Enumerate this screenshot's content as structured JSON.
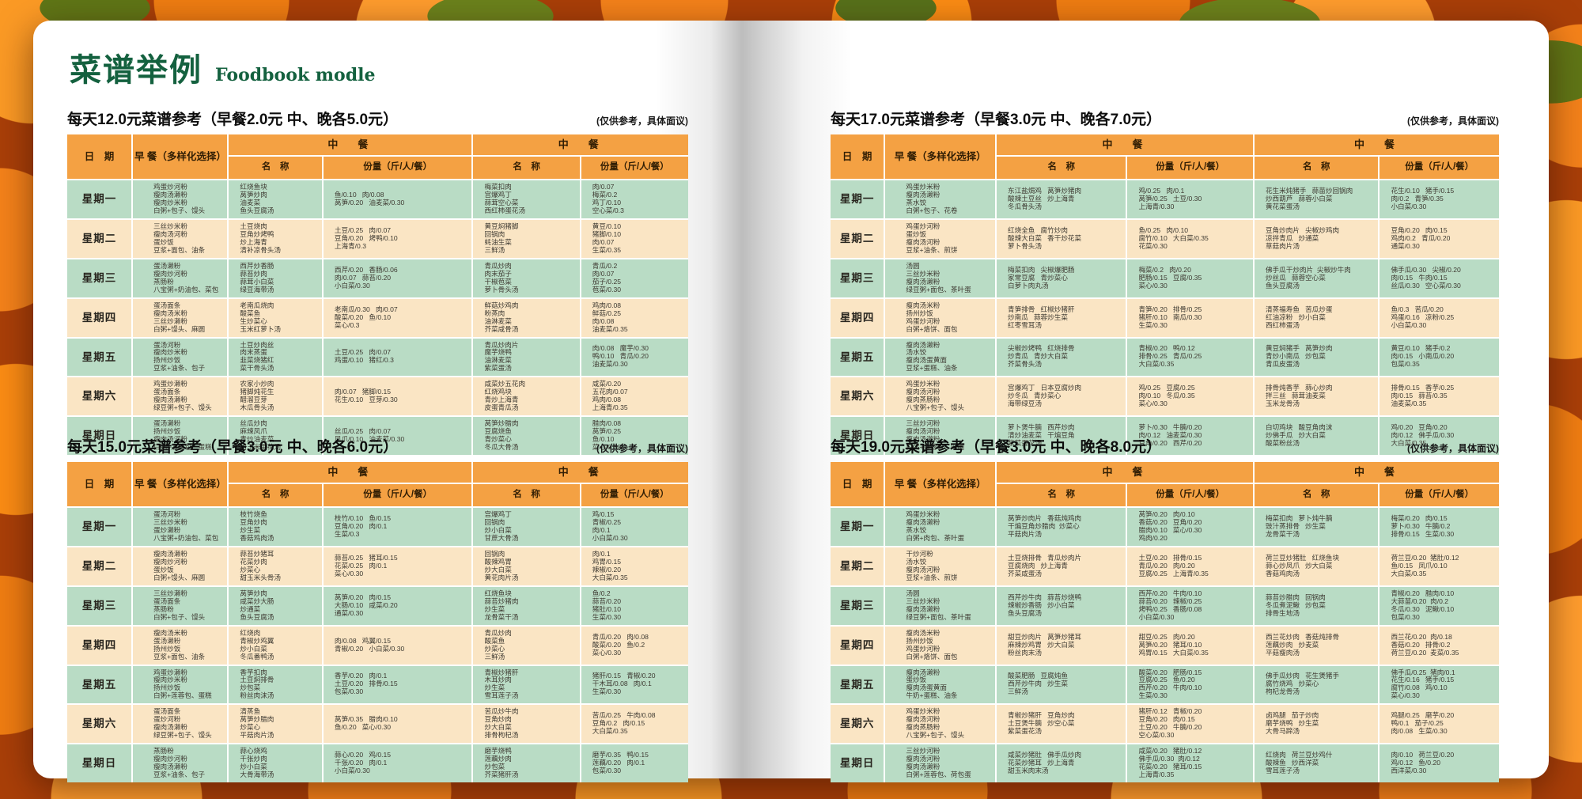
{
  "page_title": {
    "zh": "菜谱举例",
    "en": "Foodbook modle"
  },
  "note": "(仅供参考，具体面议)",
  "hdr": {
    "date": "日　期",
    "bf": "早 餐（多样化选择）",
    "meal": "中　餐",
    "name": "名　称",
    "qty": "份量（斤/人/餐）"
  },
  "tables": [
    {
      "title": "每天12.0元菜谱参考（早餐2.0元 中、晚各5.0元）",
      "rows": [
        {
          "day": "星期一",
          "bf": "鸡蛋炒河粉\n瘦肉汤濑粉\n瘦肉炒米粉\n白粥+包子、馒头",
          "ln": "红烧鱼块\n莴笋炒肉\n油麦菜\n鱼头豆腐汤",
          "lq": "鱼/0.10   肉/0.08\n莴笋/0.20   油麦菜/0.30",
          "dn": "梅菜扣肉\n宫爆鸡丁\n蒜茸空心菜\n西红柿蛋花汤",
          "dq": "肉/0.07\n梅菜/0.2\n鸡丁/0.10\n空心菜/0.3"
        },
        {
          "day": "星期二",
          "bf": "三丝炒米粉\n瘦肉汤河粉\n蛋炒饭\n豆浆+面包、油条",
          "ln": "土豆烧肉\n豆角炒烤鸭\n炒上海青\n清补凉骨头汤",
          "lq": "土豆/0.25   肉/0.07\n豆角/0.20   烤鸭/0.10\n上海青/0.3",
          "dn": "黄豆焖猪脚\n回锅肉\n蚝油生菜\n三鲜汤",
          "dq": "黄豆/0.10\n猪脚/0.10\n肉/0.07\n生菜/0.35"
        },
        {
          "day": "星期三",
          "bf": "蛋汤濑粉\n瘦肉炒河粉\n蒸肠粉\n八宝粥+奶油包、菜包",
          "ln": "西芹炒香肠\n蒜苔炒肉\n蒜茸小白菜\n绿豆海带汤",
          "lq": "西芹/0.20   香肠/0.06\n肉/0.07   蒜苔/0.20\n小白菜/0.30",
          "dn": "青瓜炒肉\n肉末茄子\n干椒苞菜\n萝卜骨头汤",
          "dq": "青瓜/0.2\n肉/0.07\n茄子/0.25\n苞菜/0.30"
        },
        {
          "day": "星期四",
          "bf": "蛋汤面条\n瘦肉汤米粉\n三丝炒濑粉\n白粥+馒头、麻圆",
          "ln": "老南瓜烧肉\n酸菜鱼\n生炒菜心\n玉米红萝卜汤",
          "lq": "老南瓜/0.30   肉/0.07\n酸菜/0.20   鱼/0.10\n菜心/0.3",
          "dn": "鲜菇炒鸡肉\n粉蒸肉\n油淋麦菜\n芥菜咸骨汤",
          "dq": "鸡肉/0.08\n鲜菇/0.25\n肉/0.08\n油麦菜/0.35"
        },
        {
          "day": "星期五",
          "bf": "蛋汤河粉\n瘦肉炒米粉\n扬州炒饭\n豆浆+油条、包子",
          "ln": "土豆炒肉丝\n肉末蒸蛋\n韭菜烧猪红\n菜干骨头汤",
          "lq": "土豆/0.25   肉/0.07\n鸡蛋/0.10   猪红/0.3",
          "dn": "青瓜炒肉片\n魔芋烧鸭\n油淋麦菜\n紫菜蛋汤",
          "dq": "肉/0.08   魔芋/0.30\n鸭/0.10   青瓜/0.20\n油麦菜/0.30"
        },
        {
          "day": "星期六",
          "bf": "鸡蛋炒濑粉\n蛋汤面条\n瘦肉汤濑粉\n绿豆粥+包子、馒头",
          "ln": "农家小炒肉\n猪脚炖花生\n醋溜豆芽\n木瓜骨头汤",
          "lq": "肉/0.07   猪脚/0.15\n花生/0.10   豆芽/0.30",
          "dn": "咸菜炒五花肉\n红烧鸡块\n青炒上海青\n皮蛋青瓜汤",
          "dq": "咸菜/0.20\n五花肉/0.07\n鸡肉/0.08\n上海青/0.35"
        },
        {
          "day": "星期日",
          "bf": "蛋汤濑粉\n扬州炒饭\n瘦肉汤河粉\n白粥+莲蓉包、蛋糕",
          "ln": "丝瓜炒肉\n麻辣凤爪\n青炒油麦菜\n甜玉米蛋花汤",
          "lq": "丝瓜/0.25   肉/0.07\n凤爪/0.10   油麦菜/0.30",
          "dn": "莴笋炒腊肉\n豆腐烧鱼\n青炒菜心\n冬瓜大骨汤",
          "dq": "腊肉/0.08\n莴笋/0.25\n鱼/0.10\n菜心/0.30"
        }
      ]
    },
    {
      "title": "每天15.0元菜谱参考（早餐3.0元 中、晚各6.0元）",
      "rows": [
        {
          "day": "星期一",
          "bf": "蛋汤河粉\n三丝炒米粉\n蛋炒濑粉\n八宝粥+奶油包、菜包",
          "ln": "枝竹烧鱼\n豆角炒肉\n炒生菜\n香菇鸡肉汤",
          "lq": "枝竹/0.10   鱼/0.15\n豆角/0.20   肉/0.1\n生菜/0.3",
          "dn": "宫爆鸡丁\n回锅肉\n炒小白菜\n甘蔗大骨汤",
          "dq": "鸡/0.15\n青椒/0.25\n肉/0.1\n小白菜/0.30"
        },
        {
          "day": "星期二",
          "bf": "瘦肉汤濑粉\n瘦肉炒河粉\n蛋炒饭\n白粥+馒头、麻圆",
          "ln": "蒜苔炒猪耳\n花菜炒肉\n炒菜心\n甜玉米头骨汤",
          "lq": "蒜苔/0.25   猪耳/0.15\n花菜/0.25   肉/0.1\n菜心/0.30",
          "dn": "回锅肉\n酸辣鸡胃\n炒大白菜\n黄花肉片汤",
          "dq": "肉/0.1\n鸡胃/0.15\n辣椒/0.20\n大白菜/0.35"
        },
        {
          "day": "星期三",
          "bf": "三丝炒濑粉\n蛋汤面条\n蒸肠粉\n白粥+包子、馒头",
          "ln": "莴笋炒肉\n咸菜炒大肠\n炒通菜\n鱼头豆腐汤",
          "lq": "莴笋/0.20   肉/0.15\n大肠/0.10   咸菜/0.20\n通菜/0.30",
          "dn": "红烧鱼块\n蒜苔炒猪肉\n炒生菜\n龙骨菜干汤",
          "dq": "鱼/0.2\n蒜苔/0.20\n猪肚/0.10\n生菜/0.30"
        },
        {
          "day": "星期四",
          "bf": "瘦肉汤米粉\n蛋汤濑粉\n扬州炒饭\n豆浆+面包、油条",
          "ln": "红烧肉\n青椒炒鸡翼\n炒小白菜\n冬瓜番鸭汤",
          "lq": "肉/0.08   鸡翼/0.15\n青椒/0.20   小白菜/0.30",
          "dn": "青瓜炒肉\n酸菜鱼\n炒菜心\n三鲜汤",
          "dq": "青瓜/0.20   肉/0.08\n酸菜/0.20   鱼/0.2\n菜心/0.30"
        },
        {
          "day": "星期五",
          "bf": "鸡蛋炒濑粉\n瘦肉炒米粉\n扬州炒饭\n白粥+莲蓉包、蛋糕",
          "ln": "香芋扣肉\n土豆焖排骨\n炒包菜\n粉丝肉沫汤",
          "lq": "香芋/0.20   肉/0.1\n土豆/0.20   排骨/0.15\n包菜/0.30",
          "dn": "青椒炒猪肝\n木耳炒肉\n炒生菜\n雪耳莲子汤",
          "dq": "猪肝/0.15   青椒/0.20\n干木耳/0.08   肉/0.1\n生菜/0.30"
        },
        {
          "day": "星期六",
          "bf": "蛋汤面条\n蛋炒河粉\n瘦肉汤濑粉\n绿豆粥+包子、馒头",
          "ln": "清蒸鱼\n莴笋炒腊肉\n炒菜心\n平菇肉片汤",
          "lq": "莴笋/0.35   腊肉/0.10\n鱼/0.20   菜心/0.30",
          "dn": "苦瓜炒牛肉\n豆角炒肉\n炒大白菜\n排骨枸杞汤",
          "dq": "苦瓜/0.25   牛肉/0.08\n豆角/0.2   肉/0.15\n大白菜/0.35"
        },
        {
          "day": "星期日",
          "bf": "蒸肠粉\n瘦肉炒河粉\n瘦肉汤濑粉\n豆浆+油条、包子",
          "ln": "蒜心烧鸡\n千张炒肉\n炒小白菜\n大骨海带汤",
          "lq": "蒜心/0.20   鸡/0.15\n千张/0.20   肉/0.1\n小白菜/0.30",
          "dn": "磨芋烧鸭\n莲藕炒肉\n炒包菜\n芥菜猪肝汤",
          "dq": "磨芋/0.35   鸭/0.15\n莲藕/0.20   肉/0.1\n包菜/0.30"
        }
      ]
    },
    {
      "title": "每天17.0元菜谱参考（早餐3.0元 中、晚各7.0元）",
      "rows": [
        {
          "day": "星期一",
          "bf": "鸡蛋炒米粉\n瘦肉汤濑粉\n蒸水饺\n白粥+包子、花卷",
          "ln": "东江盐焗鸡   莴笋炒猪肉\n酸辣土豆丝   炒上海青\n冬瓜骨头汤",
          "lq": "鸡/0.25   肉/0.1\n莴笋/0.25   土豆/0.30\n上海青/0.30",
          "dn": "花生米炖猪手   蒜苗炒回锅肉\n炒西葫芦   蒜蓉小白菜\n黄花菜蛋汤",
          "dq": "花生/0.10   猪手/0.15\n肉/0.2   青笋/0.35\n小白菜/0.30"
        },
        {
          "day": "星期二",
          "bf": "鸡蛋炒河粉\n蛋炒饭\n瘦肉汤河粉\n豆浆+油条、煎饼",
          "ln": "红烧全鱼   腐竹炒肉\n酸辣大白菜   香干炒花菜\n萝卜骨头汤",
          "lq": "鱼/0.25   肉/0.10\n腐竹/0.10   大白菜/0.35\n花菜/0.30",
          "dn": "豆角炒肉片   尖椒炒鸡肉\n凉拌青瓜   炒通菜\n草菇肉片汤",
          "dq": "豆角/0.20   肉/0.15\n鸡肉/0.2   青瓜/0.20\n通菜/0.30"
        },
        {
          "day": "星期三",
          "bf": "汤圆\n三丝炒米粉\n瘦肉汤濑粉\n绿豆粥+面包、茶叶蛋",
          "ln": "梅菜扣肉   尖椒爆肥肠\n家常豆腐   青炒菜心\n白萝卜肉丸汤",
          "lq": "梅菜/0.2   肉/0.20\n肥肠/0.15   豆腐/0.35\n菜心/0.30",
          "dn": "佛手瓜干炒肉片  尖椒炒牛肉\n炒丝瓜   蒜蓉空心菜\n鱼头豆腐汤",
          "dq": "佛手瓜/0.30   尖椒/0.20\n肉/0.15   牛肉/0.15\n丝瓜/0.30   空心菜/0.30"
        },
        {
          "day": "星期四",
          "bf": "瘦肉汤米粉\n扬州炒饭\n鸡蛋炒河粉\n白粥+烙饼、面包",
          "ln": "青笋排骨   红椒炒猪肝\n炒南瓜   蒜蓉炒生菜\n红枣雪耳汤",
          "lq": "青笋/0.20   排骨/0.25\n猪肝/0.10   南瓜/0.30\n生菜/0.30",
          "dn": "清蒸福寿鱼   苦瓜炒蛋\n红油凉粉   炒小白菜\n西红柿蛋汤",
          "dq": "鱼/0.3   苦瓜/0.20\n鸡蛋/0.16   凉粉/0.25\n小白菜/0.30"
        },
        {
          "day": "星期五",
          "bf": "瘦肉汤濑粉\n汤水饺\n瘦肉汤蛋黄面\n豆浆+蛋糕、油条",
          "ln": "尖椒炒烤鸭   红烧排骨\n炒青瓜   青炒大白菜\n芥菜骨头汤",
          "lq": "青椒/0.20   鸭/0.12\n排骨/0.25   青瓜/0.25\n大白菜/0.35",
          "dn": "黄豆焖猪手   莴笋炒肉\n青炒小南瓜   炒包菜\n青瓜皮蛋汤",
          "dq": "黄豆/0.10   猪手/0.2\n肉/0.15   小南瓜/0.20\n包菜/0.35"
        },
        {
          "day": "星期六",
          "bf": "鸡蛋炒米粉\n瘦肉汤河粉\n瘦肉蒸肠粉\n八宝粥+包子、馒头",
          "ln": "宫爆鸡丁   日本豆腐炒肉\n炒冬瓜   青炒菜心\n海带绿豆汤",
          "lq": "鸡/0.25   豆腐/0.25\n肉/0.10   冬瓜/0.35\n菜心/0.30",
          "dn": "排骨炖香芋   蒜心炒肉\n拌三丝   蒜茸油麦菜\n玉米龙骨汤",
          "dq": "排骨/0.15   香芋/0.25\n肉/0.15   蒜苔/0.35\n油麦菜/0.35"
        },
        {
          "day": "星期日",
          "bf": "三丝炒河粉\n瘦肉汤河粉\n瘦肉汤濑粉\n白粥+莲蓉包、麻圆",
          "ln": "萝卜煲牛腩   西芹炒肉\n清炒油麦菜   干煸豆角\n紫菜蛋花汤",
          "lq": "萝卜/0.30   牛腩/0.20\n肉/0.12   油麦菜/0.30\n豆角/0.20   西芹/0.20",
          "dn": "白切鸡块   酸豆角肉沫\n炒佛手瓜   炒大白菜\n酸菜粉丝汤",
          "dq": "鸡/0.20   豆角/0.20\n肉/0.12   佛手瓜/0.30\n大白菜/0.35"
        }
      ]
    },
    {
      "title": "每天19.0元菜谱参考（早餐3.0元 中、晚各8.0元）",
      "rows": [
        {
          "day": "星期一",
          "bf": "鸡蛋炒米粉\n瘦肉汤濑粉\n蒸水饺\n白粥+肉包、茶叶蛋",
          "ln": "莴笋炒肉片   香菇炖鸡肉\n干煸豆角炒腊肉  炒菜心\n平菇肉片汤",
          "lq": "莴笋/0.20   肉/0.10\n香菇/0.20   豆角/0.20\n腊肉/0.10   菜心/0.30\n鸡肉/0.20",
          "dn": "梅菜扣肉   萝卜炖牛腩\n豉汁蒸排骨   炒生菜\n龙骨菜干汤",
          "dq": "梅菜/0.20   肉/0.15\n萝卜/0.30   牛腩/0.2\n排骨/0.15   生菜/0.30"
        },
        {
          "day": "星期二",
          "bf": "干炒河粉\n汤水饺\n瘦肉汤河粉\n豆浆+油条、煎饼",
          "ln": "土豆烧排骨   青瓜炒肉片\n豆腐烧肉   炒上海青\n芥菜咸蛋汤",
          "lq": "土豆/0.20   排骨/0.15\n青瓜/0.20   肉/0.20\n豆腐/0.25   上海青/0.35",
          "dn": "荷兰豆炒猪肚   红烧鱼块\n蒜心炒凤爪   炒大白菜\n香菇鸡肉汤",
          "dq": "荷兰豆/0.20  猪肚/0.12\n鱼/0.15   凤爪/0.10\n大白菜/0.35"
        },
        {
          "day": "星期三",
          "bf": "汤圆\n三丝炒米粉\n瘦肉汤濑粉\n绿豆粥+面包、茶叶蛋",
          "ln": "西芹炒牛肉   蒜苔炒烧鸭\n辣椒炒香肠   炒小白菜\n鱼头豆腐汤",
          "lq": "西芹/0.20   牛肉/0.10\n蒜苔/0.20   辣椒/0.25\n烤鸭/0.25   香肠/0.08\n小白菜/0.30",
          "dn": "蒜苔炒腊肉   回锅肉\n冬瓜煮泥鳅   炒包菜\n排骨生地汤",
          "dq": "青椒/0.20   腊肉/0.10\n大蒜苗/0.20  肉/0.2\n冬瓜/0.30   泥鳅/0.10\n包菜/0.30"
        },
        {
          "day": "星期四",
          "bf": "瘦肉汤米粉\n扬州炒饭\n鸡蛋炒河粉\n白粥+烙饼、面包",
          "ln": "甜豆炒肉片   莴笋炒猪耳\n麻辣炒鸡胃   炒大白菜\n粉丝肉末汤",
          "lq": "甜豆/0.25   肉/0.20\n莴笋/0.20   猪耳/0.10\n鸡胃/0.15   大白菜/0.35",
          "dn": "西兰花炒肉   香菇炖排骨\n莲藕炒肉   炒麦菜\n平菇瘦肉汤",
          "dq": "西兰花/0.20  肉/0.18\n香菇/0.20   排骨/0.2\n荷兰豆/0.20  麦菜/0.35"
        },
        {
          "day": "星期五",
          "bf": "瘦肉汤濑粉\n蛋炒饭\n瘦肉汤蛋黄面\n牛奶+蛋糕、油条",
          "ln": "酸菜肥肠   豆腐炖鱼\n西芹炒牛肉   炒生菜\n三鲜汤",
          "lq": "酸菜/0.20   肥肠/0.15\n豆腐/0.25   鱼/0.20\n西芹/0.20   牛肉/0.10\n生菜/0.30",
          "dn": "佛手瓜炒肉   花生煲猪手\n腐竹烧鸡   炒菜心\n枸杞龙骨汤",
          "dq": "佛手瓜/0.25  猪肉/0.1\n花生/0.16   猪手/0.15\n腐竹/0.08   鸡/0.10\n菜心/0.30"
        },
        {
          "day": "星期六",
          "bf": "鸡蛋炒米粉\n瘦肉汤河粉\n瘦肉蒸肠粉\n八宝粥+包子、馒头",
          "ln": "青椒炒猪肝   豆角炒肉\n土豆煲牛腩   炒空心菜\n紫菜蛋花汤",
          "lq": "猪肝/0.12   青椒/0.20\n豆角/0.20   肉/0.15\n土豆/0.20   牛腩/0.20\n空心菜/0.30",
          "dn": "卤鸡腿   茄子炒肉\n磨芋烧鸭   炒生菜\n大骨马蹄汤",
          "dq": "鸡腿/0.25   磨芋/0.20\n鸭/0.1   茄子/0.25\n肉/0.08   生菜/0.30"
        },
        {
          "day": "星期日",
          "bf": "三丝炒河粉\n瘦肉汤河粉\n瘦肉汤濑粉\n白粥+莲蓉包、荷包蛋",
          "ln": "咸菜炒猪肚   佛手瓜炒肉\n花菜炒猪耳   炒上海青\n甜玉米肉末汤",
          "lq": "咸菜/0.20   猪肚/0.12\n佛手瓜/0.30  肉/0.12\n花菜/0.20   猪耳/0.15\n上海青/0.35",
          "dn": "红烧肉   荷兰豆炒鸡什\n酸辣鱼   炒西洋菜\n雪耳莲子汤",
          "dq": "肉/0.10   荷兰豆/0.20\n鸡/0.12   鱼/0.20\n西洋菜/0.30"
        }
      ]
    }
  ]
}
